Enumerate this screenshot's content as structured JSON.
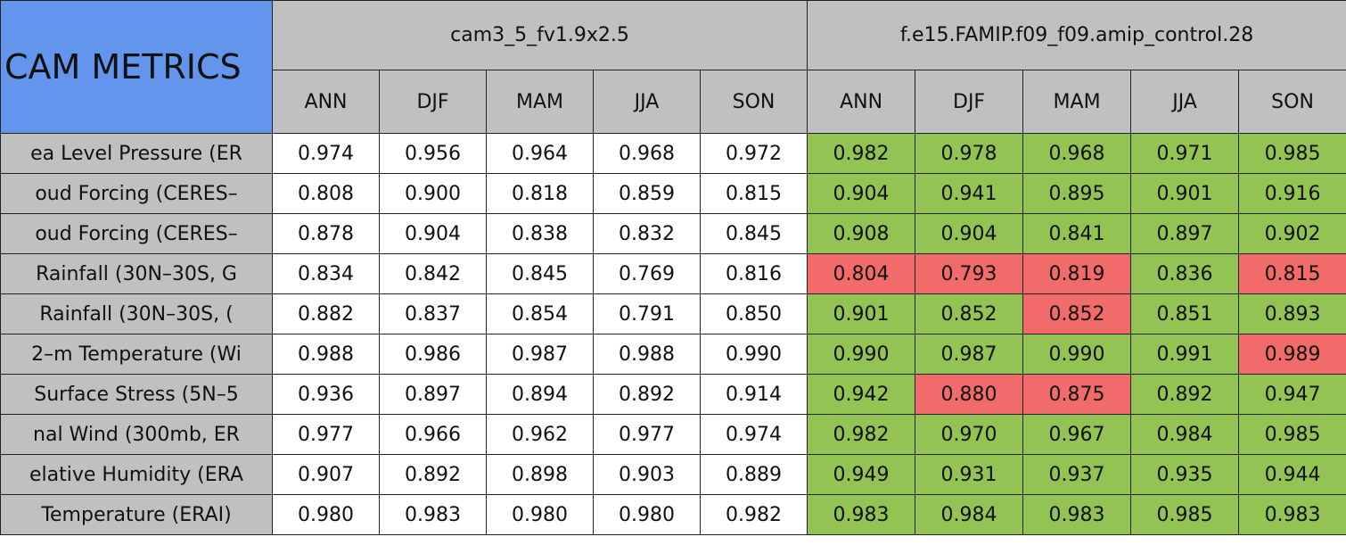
{
  "table": {
    "title": "CAM METRICS",
    "groups": [
      "cam3_5_fv1.9x2.5",
      "f.e15.FAMIP.f09_f09.amip_control.28"
    ],
    "seasons": [
      "ANN",
      "DJF",
      "MAM",
      "JJA",
      "SON"
    ],
    "rows": [
      {
        "label": "ea Level Pressure (ER",
        "values": [
          "0.974",
          "0.956",
          "0.964",
          "0.968",
          "0.972",
          "0.982",
          "0.978",
          "0.968",
          "0.971",
          "0.985"
        ],
        "fills": [
          "#ffffff",
          "#ffffff",
          "#ffffff",
          "#ffffff",
          "#ffffff",
          "#92c353",
          "#92c353",
          "#92c353",
          "#92c353",
          "#92c353"
        ]
      },
      {
        "label": "oud Forcing (CERES–",
        "values": [
          "0.808",
          "0.900",
          "0.818",
          "0.859",
          "0.815",
          "0.904",
          "0.941",
          "0.895",
          "0.901",
          "0.916"
        ],
        "fills": [
          "#ffffff",
          "#ffffff",
          "#ffffff",
          "#ffffff",
          "#ffffff",
          "#92c353",
          "#92c353",
          "#92c353",
          "#92c353",
          "#92c353"
        ]
      },
      {
        "label": "oud Forcing (CERES–",
        "values": [
          "0.878",
          "0.904",
          "0.838",
          "0.832",
          "0.845",
          "0.908",
          "0.904",
          "0.841",
          "0.897",
          "0.902"
        ],
        "fills": [
          "#ffffff",
          "#ffffff",
          "#ffffff",
          "#ffffff",
          "#ffffff",
          "#92c353",
          "#92c353",
          "#92c353",
          "#92c353",
          "#92c353"
        ]
      },
      {
        "label": "Rainfall (30N–30S, G",
        "values": [
          "0.834",
          "0.842",
          "0.845",
          "0.769",
          "0.816",
          "0.804",
          "0.793",
          "0.819",
          "0.836",
          "0.815"
        ],
        "fills": [
          "#ffffff",
          "#ffffff",
          "#ffffff",
          "#ffffff",
          "#ffffff",
          "#f26b6b",
          "#f26b6b",
          "#f26b6b",
          "#92c353",
          "#f26b6b"
        ]
      },
      {
        "label": "Rainfall (30N–30S, (",
        "values": [
          "0.882",
          "0.837",
          "0.854",
          "0.791",
          "0.850",
          "0.901",
          "0.852",
          "0.852",
          "0.851",
          "0.893"
        ],
        "fills": [
          "#ffffff",
          "#ffffff",
          "#ffffff",
          "#ffffff",
          "#ffffff",
          "#92c353",
          "#92c353",
          "#f26b6b",
          "#92c353",
          "#92c353"
        ]
      },
      {
        "label": "2–m Temperature (Wi",
        "values": [
          "0.988",
          "0.986",
          "0.987",
          "0.988",
          "0.990",
          "0.990",
          "0.987",
          "0.990",
          "0.991",
          "0.989"
        ],
        "fills": [
          "#ffffff",
          "#ffffff",
          "#ffffff",
          "#ffffff",
          "#ffffff",
          "#92c353",
          "#92c353",
          "#92c353",
          "#92c353",
          "#f26b6b"
        ]
      },
      {
        "label": "Surface Stress (5N–5",
        "values": [
          "0.936",
          "0.897",
          "0.894",
          "0.892",
          "0.914",
          "0.942",
          "0.880",
          "0.875",
          "0.892",
          "0.947"
        ],
        "fills": [
          "#ffffff",
          "#ffffff",
          "#ffffff",
          "#ffffff",
          "#ffffff",
          "#92c353",
          "#f26b6b",
          "#f26b6b",
          "#92c353",
          "#92c353"
        ]
      },
      {
        "label": "nal Wind (300mb, ER",
        "values": [
          "0.977",
          "0.966",
          "0.962",
          "0.977",
          "0.974",
          "0.982",
          "0.970",
          "0.967",
          "0.984",
          "0.985"
        ],
        "fills": [
          "#ffffff",
          "#ffffff",
          "#ffffff",
          "#ffffff",
          "#ffffff",
          "#92c353",
          "#92c353",
          "#92c353",
          "#92c353",
          "#92c353"
        ]
      },
      {
        "label": "elative Humidity (ERA",
        "values": [
          "0.907",
          "0.892",
          "0.898",
          "0.903",
          "0.889",
          "0.949",
          "0.931",
          "0.937",
          "0.935",
          "0.944"
        ],
        "fills": [
          "#ffffff",
          "#ffffff",
          "#ffffff",
          "#ffffff",
          "#ffffff",
          "#92c353",
          "#92c353",
          "#92c353",
          "#92c353",
          "#92c353"
        ]
      },
      {
        "label": "Temperature (ERAI)",
        "values": [
          "0.980",
          "0.983",
          "0.980",
          "0.980",
          "0.982",
          "0.983",
          "0.984",
          "0.983",
          "0.985",
          "0.983"
        ],
        "fills": [
          "#ffffff",
          "#ffffff",
          "#ffffff",
          "#ffffff",
          "#ffffff",
          "#92c353",
          "#92c353",
          "#92c353",
          "#92c353",
          "#92c353"
        ]
      }
    ]
  }
}
